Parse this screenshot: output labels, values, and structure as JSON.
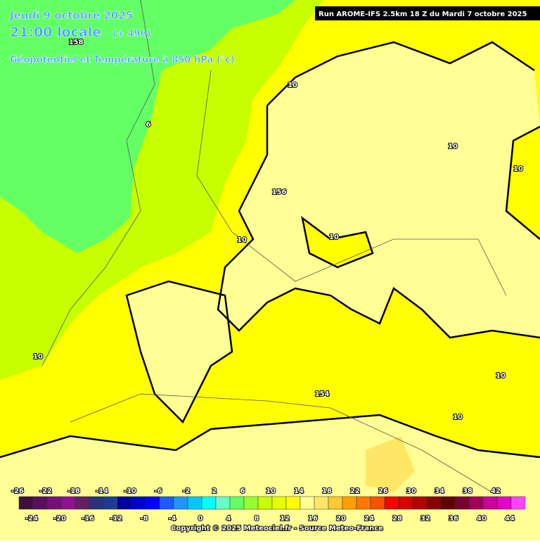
{
  "header": {
    "date": "Jeudi 9 octobre 2025",
    "time": "21:00 locale",
    "lead": "(+ 49h)",
    "field": "Géopotentiel et Température à 850 hPa (°c)",
    "run": "Run AROME-IFS 2.5km 18 Z du Mardi 7 octobre 2025"
  },
  "map": {
    "contour_labels": [
      "10",
      "6",
      "156",
      "10",
      "10",
      "10",
      "10",
      "10",
      "154",
      "10",
      "10",
      "158"
    ]
  },
  "colorbar": {
    "colors": [
      "#3f0f3f",
      "#5a0f5a",
      "#780f78",
      "#8c148c",
      "#641e64",
      "#283278",
      "#1e3c96",
      "#0000a0",
      "#0000c8",
      "#0000ff",
      "#1e5aff",
      "#1e96ff",
      "#00c8ff",
      "#00ffff",
      "#64ffc8",
      "#64ff64",
      "#96ff32",
      "#c8ff00",
      "#e6ff00",
      "#ffff00",
      "#ffff96",
      "#ffe664",
      "#ffc832",
      "#ffa000",
      "#ff7800",
      "#ff5000",
      "#ff0000",
      "#dc0000",
      "#b40000",
      "#8c0000",
      "#640000",
      "#780032",
      "#a0005a",
      "#c80096",
      "#e600c8",
      "#ff46ff"
    ],
    "top_labels": [
      -26,
      -22,
      -18,
      -14,
      -10,
      -6,
      -2,
      2,
      6,
      10,
      14,
      18,
      22,
      26,
      30,
      34,
      38,
      42
    ],
    "bottom_labels": [
      -24,
      -20,
      -16,
      -12,
      -8,
      -4,
      0,
      4,
      8,
      12,
      16,
      20,
      24,
      28,
      32,
      36,
      40,
      44
    ]
  },
  "footer": {
    "copyright": "Copyright © 2025 Meteociel.fr - Source Meteo-France"
  }
}
